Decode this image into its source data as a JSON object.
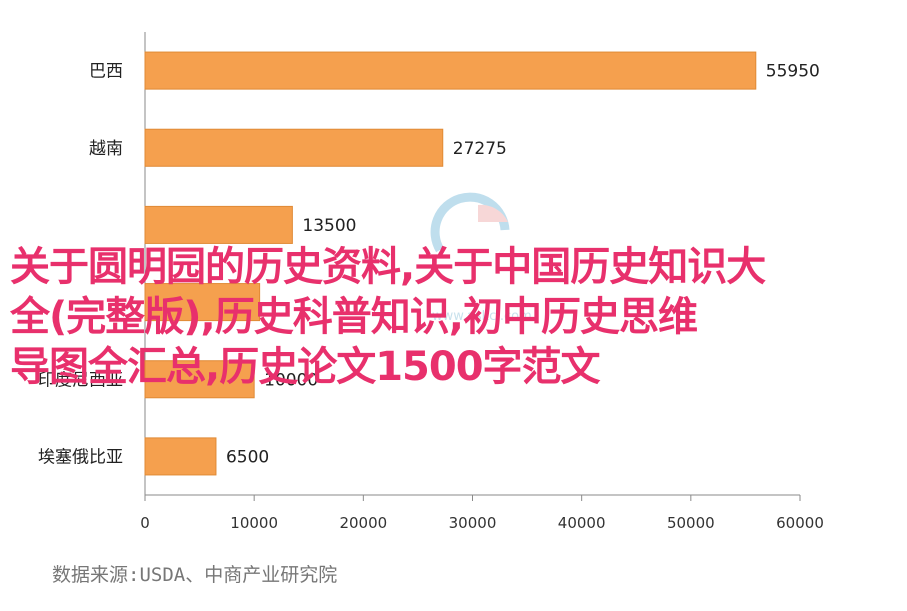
{
  "chart_data": {
    "type": "bar",
    "orientation": "horizontal",
    "categories": [
      "巴西",
      "越南",
      "",
      "",
      "印度尼西亚",
      "埃塞俄比亚"
    ],
    "values": [
      55950,
      27275,
      13500,
      10500,
      10000,
      6500
    ],
    "data_labels": [
      "55950",
      "27275",
      "13500",
      "",
      "10000",
      "6500"
    ],
    "xlim": [
      0,
      60000
    ],
    "xticks": [
      0,
      10000,
      20000,
      30000,
      40000,
      50000,
      60000
    ],
    "grid": false,
    "bar_color": "#f5a04e",
    "bar_edge_color": "#e08a35"
  },
  "source_text": "数据来源:USDA、中商产业研究院",
  "overlay_title": "关于圆明园的历史资料,关于中国历史知识大\n全(完整版),历史科普知识,初中历史思维\n导图全汇总,历史论文1500字范文",
  "overlay_color": "#e8306c",
  "watermark_text": "www.askci.com"
}
